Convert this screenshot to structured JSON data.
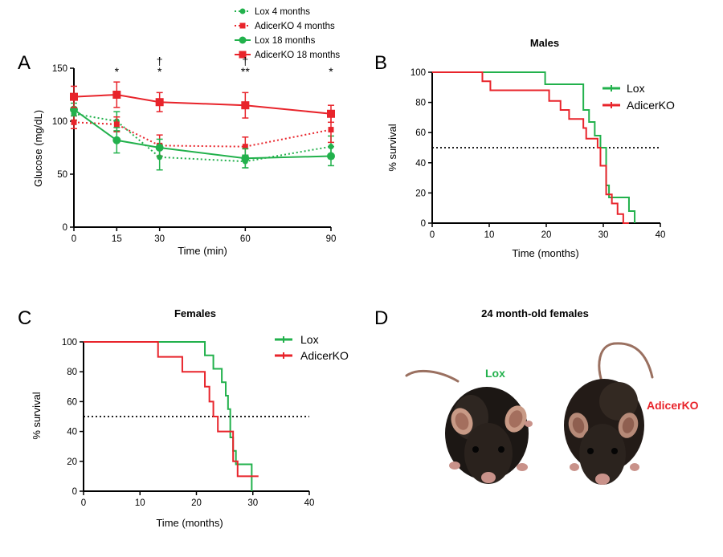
{
  "colors": {
    "lox": "#22b14c",
    "adicer": "#e8242b",
    "axis": "#000000"
  },
  "chart_data": [
    {
      "panel": "A",
      "type": "line",
      "title": "",
      "xlabel": "Time (min)",
      "ylabel": "Glucose (mg/dL)",
      "xlim": [
        0,
        90
      ],
      "ylim": [
        0,
        150
      ],
      "xticks": [
        0,
        15,
        30,
        60,
        90
      ],
      "yticks": [
        0,
        50,
        100,
        150
      ],
      "x": [
        0,
        15,
        30,
        60,
        90
      ],
      "legend": [
        "Lox 4 months",
        "AdicerKO 4 months",
        "Lox 18 months",
        "AdicerKO 18 months"
      ],
      "series": [
        {
          "name": "Lox 4 months",
          "color": "#22b14c",
          "dash": true,
          "marker": "circle",
          "values": [
            107,
            100,
            66,
            62,
            76
          ],
          "errors": [
            6,
            9,
            12,
            6,
            10
          ]
        },
        {
          "name": "AdicerKO 4 months",
          "color": "#e8242b",
          "dash": true,
          "marker": "square",
          "values": [
            99,
            97,
            77,
            76,
            92
          ],
          "errors": [
            6,
            7,
            10,
            9,
            12
          ]
        },
        {
          "name": "Lox 18 months",
          "color": "#22b14c",
          "dash": false,
          "marker": "circle",
          "values": [
            111,
            82,
            75,
            65,
            67
          ],
          "errors": [
            6,
            12,
            8,
            9,
            9
          ]
        },
        {
          "name": "AdicerKO 18 months",
          "color": "#e8242b",
          "dash": false,
          "marker": "square",
          "values": [
            123,
            125,
            118,
            115,
            107
          ],
          "errors": [
            10,
            12,
            9,
            12,
            8
          ]
        }
      ],
      "annotations": [
        {
          "x": 15,
          "lines": [
            "*"
          ]
        },
        {
          "x": 30,
          "lines": [
            "†",
            "*"
          ]
        },
        {
          "x": 60,
          "lines": [
            "†",
            "**"
          ]
        },
        {
          "x": 90,
          "lines": [
            "*"
          ]
        }
      ]
    },
    {
      "panel": "B",
      "type": "line",
      "title": "Males",
      "xlabel": "Time (months)",
      "ylabel": "% survival",
      "xlim": [
        0,
        40
      ],
      "ylim": [
        0,
        100
      ],
      "xticks": [
        0,
        10,
        20,
        30,
        40
      ],
      "yticks": [
        0,
        20,
        40,
        60,
        80,
        100
      ],
      "reference_line": 50,
      "legend_position": "top-right",
      "series": [
        {
          "name": "Lox",
          "color": "#22b14c",
          "x": [
            0,
            19.8,
            19.8,
            26.5,
            26.5,
            27.5,
            27.5,
            28.5,
            28.5,
            29.5,
            29.5,
            30.5,
            30.5,
            31,
            31,
            34.5,
            34.5,
            35.5,
            35.5
          ],
          "y": [
            100,
            100,
            92,
            92,
            75,
            75,
            67,
            67,
            58,
            58,
            50,
            50,
            25,
            25,
            17,
            17,
            8,
            8,
            0
          ]
        },
        {
          "name": "AdicerKO",
          "color": "#e8242b",
          "x": [
            0,
            8.8,
            8.8,
            10.2,
            10.2,
            20.5,
            20.5,
            22.5,
            22.5,
            24,
            24,
            26.5,
            26.5,
            27,
            27,
            29,
            29,
            29.5,
            29.5,
            30.5,
            30.5,
            31.5,
            31.5,
            32.5,
            32.5,
            33.5,
            33.5,
            34.5,
            34.5
          ],
          "y": [
            100,
            100,
            94,
            94,
            88,
            88,
            81,
            81,
            75,
            75,
            69,
            69,
            63,
            63,
            56,
            56,
            50,
            50,
            38,
            38,
            19,
            19,
            13,
            13,
            6,
            6,
            0,
            0,
            0
          ]
        }
      ]
    },
    {
      "panel": "C",
      "type": "line",
      "title": "Females",
      "xlabel": "Time (months)",
      "ylabel": "% survival",
      "xlim": [
        0,
        40
      ],
      "ylim": [
        0,
        100
      ],
      "xticks": [
        0,
        10,
        20,
        30,
        40
      ],
      "yticks": [
        0,
        20,
        40,
        60,
        80,
        100
      ],
      "reference_line": 50,
      "legend_position": "top-right",
      "series": [
        {
          "name": "Lox",
          "color": "#22b14c",
          "x": [
            0,
            21.5,
            21.5,
            23,
            23,
            24.5,
            24.5,
            25.2,
            25.2,
            25.6,
            25.6,
            26,
            26,
            26.5,
            26.5,
            27,
            27,
            29.8,
            29.8
          ],
          "y": [
            100,
            100,
            91,
            91,
            82,
            82,
            73,
            73,
            64,
            64,
            55,
            55,
            36,
            36,
            27,
            27,
            18,
            18,
            0
          ]
        },
        {
          "name": "AdicerKO",
          "color": "#e8242b",
          "x": [
            0,
            13.2,
            13.2,
            17.5,
            17.5,
            21.5,
            21.5,
            22.3,
            22.3,
            23,
            23,
            23.8,
            23.8,
            26.5,
            26.5,
            27.3,
            27.3,
            31
          ],
          "y": [
            100,
            100,
            90,
            90,
            80,
            80,
            70,
            70,
            60,
            60,
            50,
            50,
            40,
            40,
            20,
            20,
            10,
            10
          ]
        }
      ]
    }
  ],
  "panel_labels": {
    "a": "A",
    "b": "B",
    "c": "C",
    "d": "D"
  },
  "panel_d": {
    "title": "24 month-old females",
    "lox_label": "Lox",
    "ko_label": "AdicerKO"
  }
}
